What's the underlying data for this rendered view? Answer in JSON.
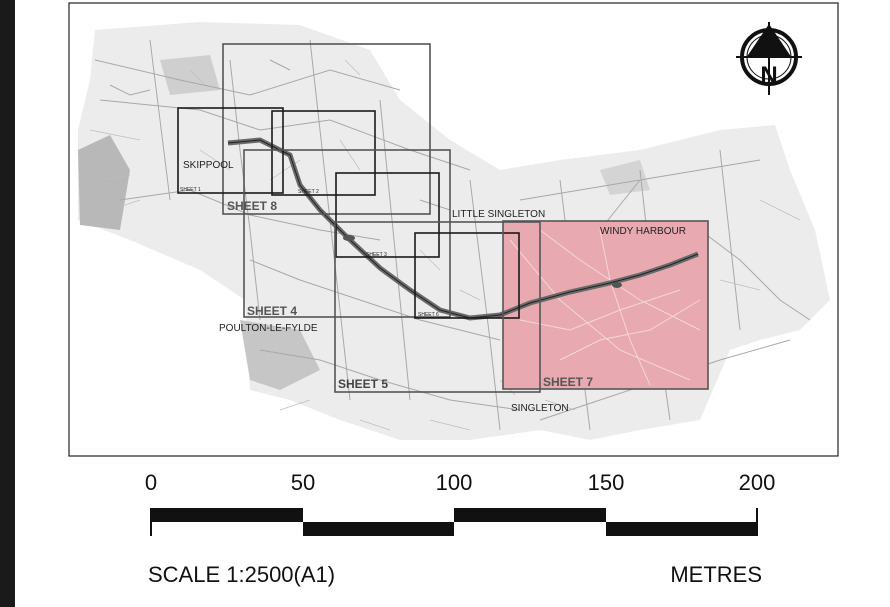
{
  "map": {
    "places": {
      "skippool": "SKIPPOOL",
      "little_singleton": "LITTLE SINGLETON",
      "windy_harbour": "WINDY HARBOUR",
      "poulton": "POULTON-LE-FYLDE",
      "singleton": "SINGLETON"
    },
    "sheets": {
      "sheet1": "SHEET 1",
      "sheet2": "SHEET 2",
      "sheet3": "SHEET 3",
      "sheet4": "SHEET 4",
      "sheet5": "SHEET 5",
      "sheet6": "SHEET 6",
      "sheet7": "SHEET 7",
      "sheet8": "SHEET 8"
    },
    "north_label": "N",
    "highlight_color": "#e8aab0"
  },
  "scale_bar": {
    "ticks": [
      "0",
      "50",
      "100",
      "150",
      "200"
    ],
    "scale_text": "SCALE 1:2500(A1)",
    "units": "METRES"
  }
}
